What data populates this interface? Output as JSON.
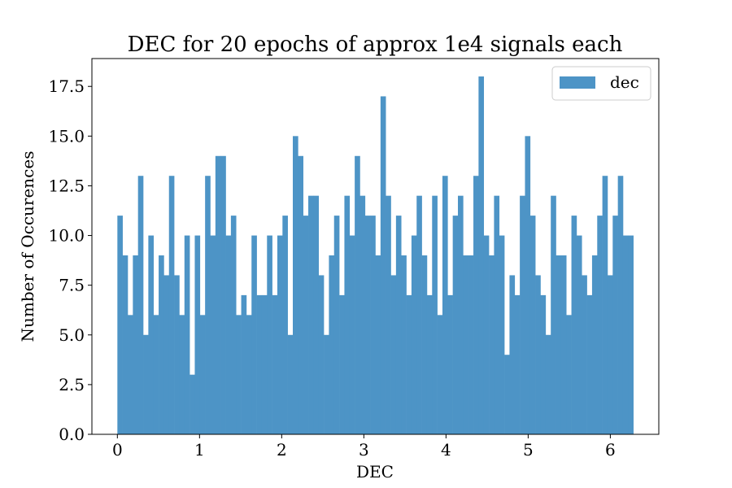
{
  "chart_data": {
    "type": "bar",
    "title": "DEC for 20 epochs of approx 1e4 signals each",
    "xlabel": "DEC",
    "ylabel": "Number of Occurences",
    "xlim": [
      -0.31,
      6.59
    ],
    "ylim": [
      0,
      18.9
    ],
    "bin_range": [
      0,
      6.28
    ],
    "x_ticks": [
      "0",
      "1",
      "2",
      "3",
      "4",
      "5",
      "6"
    ],
    "y_ticks": [
      "0.0",
      "2.5",
      "5.0",
      "7.5",
      "10.0",
      "12.5",
      "15.0",
      "17.5"
    ],
    "grid": false,
    "legend_position": "top-right",
    "series": [
      {
        "name": "dec",
        "color": "#4d94c6",
        "values": [
          11,
          9,
          6,
          9,
          13,
          5,
          10,
          6,
          9,
          8,
          13,
          8,
          6,
          10,
          3,
          10,
          6,
          13,
          10,
          14,
          14,
          10,
          11,
          6,
          7,
          6,
          10,
          7,
          7,
          10,
          7,
          10,
          11,
          5,
          15,
          14,
          11,
          12,
          12,
          8,
          5,
          9,
          11,
          7,
          12,
          10,
          14,
          12,
          11,
          11,
          9,
          17,
          12,
          8,
          11,
          9,
          7,
          10,
          12,
          9,
          7,
          12,
          6,
          13,
          7,
          11,
          12,
          9,
          9,
          13,
          18,
          10,
          9,
          12,
          10,
          4,
          8,
          7,
          12,
          15,
          11,
          8,
          7,
          5,
          12,
          9,
          9,
          6,
          11,
          10,
          8,
          7,
          9,
          11,
          13,
          8,
          11,
          13,
          10,
          10
        ]
      }
    ]
  }
}
